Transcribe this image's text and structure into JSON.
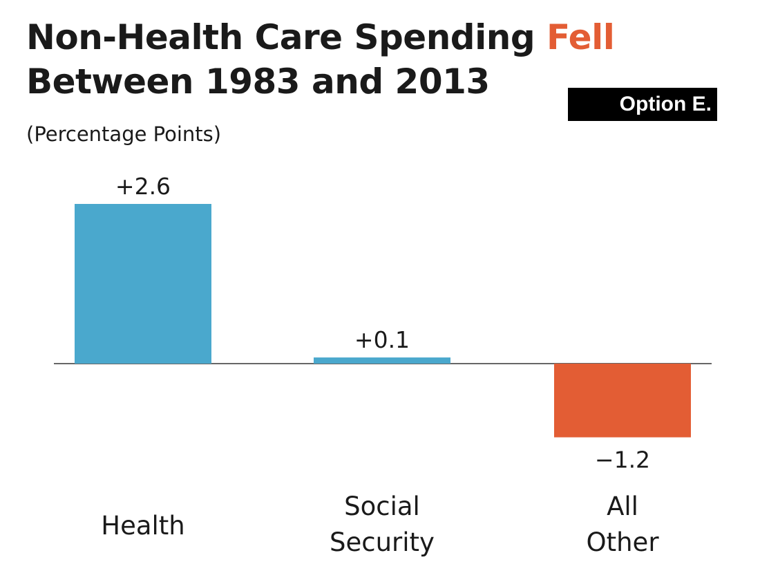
{
  "title": {
    "line1_prefix": "Non-Health Care Spending ",
    "line1_accent": "Fell",
    "line2": "Between 1983 and 2013"
  },
  "subtitle": "(Percentage Points)",
  "badge": "Option E.",
  "colors": {
    "positive": "#4aa8cd",
    "negative": "#e35d34",
    "text": "#1a1a1a",
    "baseline": "#333333"
  },
  "chart_data": {
    "type": "bar",
    "title": "Non-Health Care Spending Fell Between 1983 and 2013",
    "subtitle": "(Percentage Points)",
    "categories": [
      [
        "Health"
      ],
      [
        "Social",
        "Security"
      ],
      [
        "All",
        "Other"
      ]
    ],
    "values": [
      2.6,
      0.1,
      -1.2
    ],
    "value_labels": [
      "+2.6",
      "+0.1",
      "−1.2"
    ],
    "bar_colors": [
      "#4aa8cd",
      "#4aa8cd",
      "#e35d34"
    ],
    "ylim": [
      -1.2,
      2.6
    ],
    "grid": false,
    "legend": "none"
  }
}
